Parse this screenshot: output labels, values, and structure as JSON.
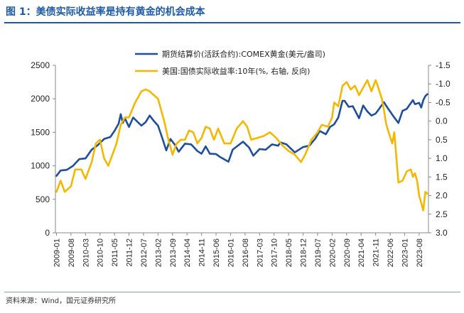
{
  "figure": {
    "title": "图 1：美债实际收益率是持有黄金的机会成本",
    "source": "资料来源：Wind，国元证券研究所"
  },
  "chart_data": {
    "type": "line",
    "xlim": [
      "2009-01",
      "2023-12"
    ],
    "x_ticks": [
      "2009-01",
      "2009-08",
      "2010-03",
      "2010-10",
      "2011-05",
      "2011-12",
      "2012-07",
      "2013-02",
      "2013-09",
      "2014-04",
      "2014-11",
      "2015-06",
      "2016-01",
      "2016-08",
      "2017-03",
      "2017-10",
      "2018-05",
      "2018-12",
      "2019-07",
      "2020-02",
      "2020-09",
      "2021-04",
      "2021-11",
      "2022-06",
      "2023-01",
      "2023-08"
    ],
    "y_left": {
      "lim": [
        0,
        2500
      ],
      "ticks": [
        0,
        500,
        1000,
        1500,
        2000,
        2500
      ]
    },
    "y_right": {
      "lim": [
        -1.5,
        3.0
      ],
      "reversed": true,
      "ticks": [
        -1.5,
        -1.0,
        -0.5,
        0.0,
        0.5,
        1.0,
        1.5,
        2.0,
        2.5,
        3.0
      ],
      "tick_labels": [
        "-1.5",
        "-1.0",
        "-0.5",
        "0.0",
        "0.5",
        "1.0",
        "1.5",
        "2.0",
        "2.5",
        "3.0"
      ]
    },
    "legend_position": "top-center",
    "series": [
      {
        "name": "期货结算价(活跃合约):COMEX黄金(美元/盎司)",
        "axis": "left",
        "color": "#1f4e9c",
        "points": [
          [
            "2009-01",
            850
          ],
          [
            "2009-03",
            930
          ],
          [
            "2009-06",
            940
          ],
          [
            "2009-09",
            1000
          ],
          [
            "2009-12",
            1100
          ],
          [
            "2010-03",
            1110
          ],
          [
            "2010-06",
            1240
          ],
          [
            "2010-09",
            1310
          ],
          [
            "2010-12",
            1400
          ],
          [
            "2011-03",
            1430
          ],
          [
            "2011-05",
            1520
          ],
          [
            "2011-07",
            1630
          ],
          [
            "2011-08",
            1770
          ],
          [
            "2011-09",
            1640
          ],
          [
            "2011-10",
            1710
          ],
          [
            "2011-12",
            1580
          ],
          [
            "2012-02",
            1720
          ],
          [
            "2012-04",
            1660
          ],
          [
            "2012-06",
            1600
          ],
          [
            "2012-08",
            1650
          ],
          [
            "2012-10",
            1750
          ],
          [
            "2012-12",
            1670
          ],
          [
            "2013-02",
            1600
          ],
          [
            "2013-04",
            1420
          ],
          [
            "2013-06",
            1230
          ],
          [
            "2013-08",
            1400
          ],
          [
            "2013-10",
            1320
          ],
          [
            "2013-12",
            1210
          ],
          [
            "2014-03",
            1330
          ],
          [
            "2014-06",
            1320
          ],
          [
            "2014-09",
            1220
          ],
          [
            "2014-11",
            1180
          ],
          [
            "2015-01",
            1290
          ],
          [
            "2015-03",
            1180
          ],
          [
            "2015-06",
            1175
          ],
          [
            "2015-08",
            1130
          ],
          [
            "2015-12",
            1060
          ],
          [
            "2016-02",
            1240
          ],
          [
            "2016-07",
            1360
          ],
          [
            "2016-10",
            1270
          ],
          [
            "2016-12",
            1150
          ],
          [
            "2017-03",
            1250
          ],
          [
            "2017-06",
            1240
          ],
          [
            "2017-09",
            1320
          ],
          [
            "2017-12",
            1300
          ],
          [
            "2018-01",
            1350
          ],
          [
            "2018-04",
            1320
          ],
          [
            "2018-06",
            1260
          ],
          [
            "2018-08",
            1200
          ],
          [
            "2018-12",
            1280
          ],
          [
            "2019-03",
            1300
          ],
          [
            "2019-06",
            1410
          ],
          [
            "2019-08",
            1520
          ],
          [
            "2019-11",
            1470
          ],
          [
            "2020-01",
            1580
          ],
          [
            "2020-03",
            1620
          ],
          [
            "2020-05",
            1720
          ],
          [
            "2020-07",
            1970
          ],
          [
            "2020-08",
            1970
          ],
          [
            "2020-10",
            1880
          ],
          [
            "2020-12",
            1890
          ],
          [
            "2021-03",
            1710
          ],
          [
            "2021-05",
            1900
          ],
          [
            "2021-07",
            1810
          ],
          [
            "2021-09",
            1750
          ],
          [
            "2021-11",
            1780
          ],
          [
            "2021-12",
            1820
          ],
          [
            "2022-03",
            1950
          ],
          [
            "2022-04",
            1900
          ],
          [
            "2022-06",
            1810
          ],
          [
            "2022-08",
            1720
          ],
          [
            "2022-10",
            1640
          ],
          [
            "2022-12",
            1820
          ],
          [
            "2023-02",
            1850
          ],
          [
            "2023-05",
            1980
          ],
          [
            "2023-06",
            1920
          ],
          [
            "2023-08",
            1940
          ],
          [
            "2023-09",
            1870
          ],
          [
            "2023-10",
            1980
          ],
          [
            "2023-11",
            2040
          ],
          [
            "2023-12",
            2070
          ]
        ]
      },
      {
        "name": "美国:国债实际收益率:10年(%, 右轴, 反向)",
        "axis": "right",
        "color": "#f5b800",
        "points": [
          [
            "2009-01",
            1.9
          ],
          [
            "2009-03",
            1.6
          ],
          [
            "2009-05",
            1.9
          ],
          [
            "2009-08",
            1.75
          ],
          [
            "2009-10",
            1.3
          ],
          [
            "2010-01",
            1.3
          ],
          [
            "2010-03",
            1.55
          ],
          [
            "2010-06",
            1.1
          ],
          [
            "2010-08",
            0.6
          ],
          [
            "2010-10",
            0.5
          ],
          [
            "2010-12",
            1.0
          ],
          [
            "2011-02",
            1.2
          ],
          [
            "2011-04",
            0.9
          ],
          [
            "2011-06",
            0.6
          ],
          [
            "2011-08",
            0.1
          ],
          [
            "2011-10",
            -0.1
          ],
          [
            "2011-12",
            -0.1
          ],
          [
            "2012-03",
            -0.5
          ],
          [
            "2012-06",
            -0.8
          ],
          [
            "2012-08",
            -0.85
          ],
          [
            "2012-10",
            -0.8
          ],
          [
            "2012-12",
            -0.7
          ],
          [
            "2013-02",
            -0.6
          ],
          [
            "2013-05",
            0.0
          ],
          [
            "2013-07",
            0.5
          ],
          [
            "2013-09",
            0.9
          ],
          [
            "2013-11",
            0.6
          ],
          [
            "2014-01",
            0.5
          ],
          [
            "2014-03",
            0.5
          ],
          [
            "2014-05",
            0.25
          ],
          [
            "2014-07",
            0.3
          ],
          [
            "2014-09",
            0.6
          ],
          [
            "2014-11",
            0.45
          ],
          [
            "2015-01",
            0.15
          ],
          [
            "2015-03",
            0.2
          ],
          [
            "2015-05",
            0.5
          ],
          [
            "2015-07",
            0.2
          ],
          [
            "2015-10",
            0.6
          ],
          [
            "2016-01",
            0.6
          ],
          [
            "2016-04",
            0.2
          ],
          [
            "2016-07",
            0.0
          ],
          [
            "2016-09",
            0.15
          ],
          [
            "2016-11",
            0.5
          ],
          [
            "2017-02",
            0.45
          ],
          [
            "2017-05",
            0.4
          ],
          [
            "2017-08",
            0.3
          ],
          [
            "2017-11",
            0.45
          ],
          [
            "2018-02",
            0.65
          ],
          [
            "2018-05",
            0.8
          ],
          [
            "2018-08",
            0.9
          ],
          [
            "2018-11",
            1.1
          ],
          [
            "2019-01",
            0.9
          ],
          [
            "2019-04",
            0.5
          ],
          [
            "2019-07",
            0.3
          ],
          [
            "2019-09",
            0.1
          ],
          [
            "2019-12",
            0.15
          ],
          [
            "2020-02",
            -0.1
          ],
          [
            "2020-03",
            -0.5
          ],
          [
            "2020-05",
            -0.4
          ],
          [
            "2020-07",
            -0.95
          ],
          [
            "2020-09",
            -1.05
          ],
          [
            "2020-11",
            -0.85
          ],
          [
            "2021-01",
            -0.95
          ],
          [
            "2021-03",
            -0.7
          ],
          [
            "2021-05",
            -0.9
          ],
          [
            "2021-07",
            -1.1
          ],
          [
            "2021-09",
            -0.8
          ],
          [
            "2021-11",
            -1.1
          ],
          [
            "2021-12",
            -0.95
          ],
          [
            "2022-02",
            -0.6
          ],
          [
            "2022-03",
            -0.3
          ],
          [
            "2022-04",
            0.05
          ],
          [
            "2022-05",
            0.25
          ],
          [
            "2022-07",
            0.6
          ],
          [
            "2022-08",
            0.3
          ],
          [
            "2022-10",
            1.65
          ],
          [
            "2022-12",
            1.6
          ],
          [
            "2023-02",
            1.35
          ],
          [
            "2023-04",
            1.3
          ],
          [
            "2023-05",
            1.5
          ],
          [
            "2023-06",
            1.4
          ],
          [
            "2023-07",
            1.6
          ],
          [
            "2023-08",
            2.0
          ],
          [
            "2023-10",
            2.4
          ],
          [
            "2023-11",
            1.9
          ],
          [
            "2023-12",
            1.95
          ]
        ]
      }
    ]
  }
}
